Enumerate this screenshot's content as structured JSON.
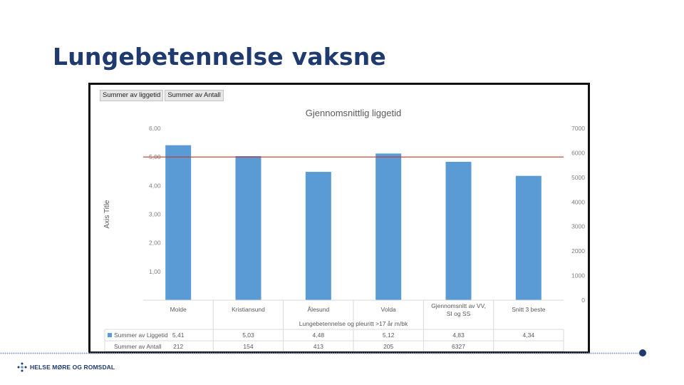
{
  "slide": {
    "title": "Lungebetennelse vaksne",
    "logo_text": "HELSE MØRE OG ROMSDAL"
  },
  "colors": {
    "title": "#1f3a6e",
    "bar": "#5b9bd5",
    "reference_line": "#c0392b",
    "brand": "#1f3a6e"
  },
  "pivot_buttons": [
    "Summer av liggetid",
    "Summer av Antall"
  ],
  "chart_data": {
    "type": "bar",
    "title": "Gjennomsnittlig liggetid",
    "ylabel": "Axis Title",
    "xlabel": "Lungebetennelse og pleuritt >17 år m/bk",
    "categories": [
      "Molde",
      "Kristiansund",
      "Ålesund",
      "Volda",
      "Gjennomsnitt av VV, SI og SS",
      "Snitt 3 beste"
    ],
    "series": [
      {
        "name": "Summer av Liggetid",
        "values": [
          5.41,
          5.03,
          4.48,
          5.12,
          4.83,
          4.34
        ],
        "display": [
          "5,41",
          "5,03",
          "4,48",
          "5,12",
          "4,83",
          "4,34"
        ],
        "axis": "left"
      },
      {
        "name": "Summer av Antall",
        "values": [
          212,
          154,
          413,
          205,
          6327,
          null
        ],
        "display": [
          "212",
          "154",
          "413",
          "205",
          "6327",
          ""
        ],
        "axis": "right"
      }
    ],
    "ylim": [
      0,
      6
    ],
    "yticks": [
      "",
      "1,00",
      "2,00",
      "3,00",
      "4,00",
      "5,00",
      "6,00"
    ],
    "y2lim": [
      0,
      7000
    ],
    "y2ticks": [
      "0",
      "1000",
      "2000",
      "3000",
      "4000",
      "5000",
      "6000",
      "7000"
    ],
    "reference_line": 5.0,
    "gridlines": false,
    "legend": "data-table"
  }
}
